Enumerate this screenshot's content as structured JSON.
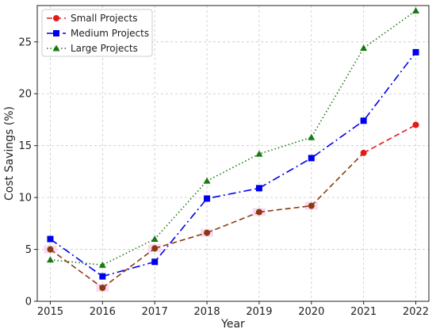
{
  "chart_data": {
    "type": "line",
    "xlabel": "Year",
    "ylabel": "Cost Savings (%)",
    "x": [
      2015,
      2016,
      2017,
      2018,
      2019,
      2020,
      2021,
      2022
    ],
    "xlim": [
      2014.75,
      2022.25
    ],
    "ylim": [
      0,
      28.5
    ],
    "yticks": [
      0,
      5,
      10,
      15,
      20,
      25
    ],
    "grid": true,
    "legend_position": "top-left",
    "series": [
      {
        "name": "Small Projects",
        "values": [
          5.0,
          1.3,
          5.1,
          6.6,
          8.6,
          9.2,
          14.3,
          17.0
        ],
        "color": "#e31a1c",
        "point_color": "#8b3a0f",
        "line_color": "#8b3a0f",
        "highlight_color": "#f8d5f0",
        "marker": "circle",
        "dash": "dashed"
      },
      {
        "name": "Medium Projects",
        "values": [
          6.0,
          2.4,
          3.8,
          9.9,
          10.9,
          13.8,
          17.4,
          24.0
        ],
        "color": "#0000ee",
        "marker": "square",
        "dash": "dashdot"
      },
      {
        "name": "Large Projects",
        "values": [
          4.0,
          3.5,
          6.0,
          11.6,
          14.2,
          15.8,
          24.4,
          28.0
        ],
        "color": "#1a7a12",
        "marker": "triangle",
        "dash": "dotted"
      }
    ]
  }
}
